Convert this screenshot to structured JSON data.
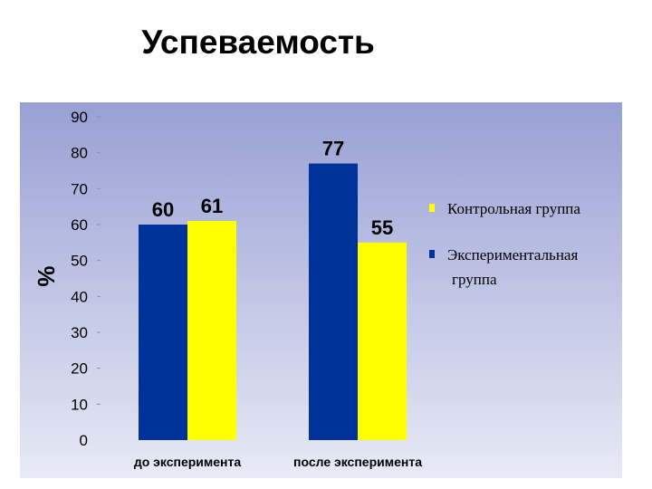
{
  "title": "Успеваемость",
  "chart_data": {
    "type": "bar",
    "categories": [
      "до эксперимента",
      "после эксперимента"
    ],
    "series": [
      {
        "name": "Экспериментальная группа",
        "color": "#003399",
        "values": [
          60,
          77
        ]
      },
      {
        "name": "Контрольная группа",
        "color": "#ffff00",
        "values": [
          61,
          55
        ]
      }
    ],
    "ylabel": "%",
    "ylim": [
      0,
      90
    ],
    "yticks": [
      "0",
      "10",
      "20",
      "30",
      "40",
      "50",
      "60",
      "70",
      "80",
      "90"
    ],
    "data_labels": true,
    "legend": {
      "placement": "right",
      "items": [
        {
          "series": 1,
          "lines": [
            "Контрольная группа"
          ]
        },
        {
          "series": 0,
          "lines": [
            "Экспериментальная",
            "группа"
          ]
        }
      ]
    },
    "background_gradient": [
      "#98a0d4",
      "#e8eaf6"
    ]
  }
}
